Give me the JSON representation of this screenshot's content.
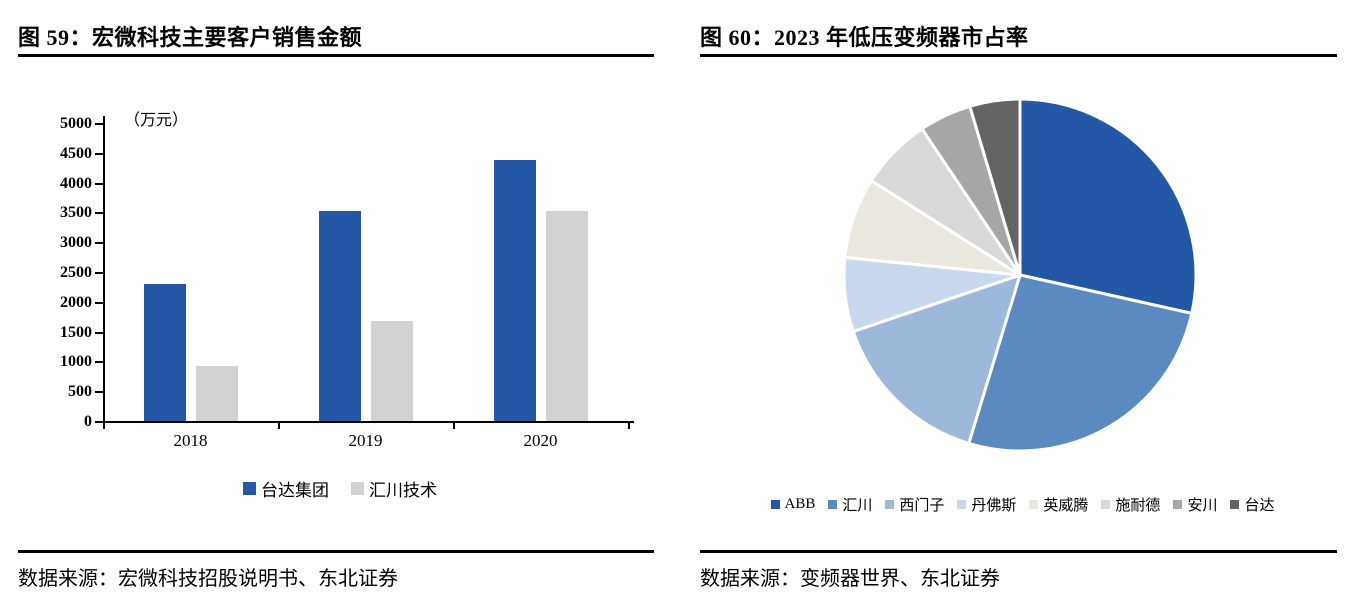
{
  "figure59": {
    "title": "图 59：宏微科技主要客户销售金额",
    "source": "数据来源：宏微科技招股说明书、东北证券"
  },
  "figure60": {
    "title": "图 60：2023 年低压变频器市占率",
    "source": "数据来源：变频器世界、东北证券"
  },
  "chart_data": [
    {
      "type": "bar",
      "title": "宏微科技主要客户销售金额",
      "categories": [
        "2018",
        "2019",
        "2020"
      ],
      "series": [
        {
          "name": "台达集团",
          "color": "#2458A6",
          "values": [
            2300,
            3530,
            4380
          ]
        },
        {
          "name": "汇川技术",
          "color": "#D2D2D2",
          "values": [
            930,
            1670,
            3520
          ]
        }
      ],
      "ylabel": "（万元）",
      "ylim": [
        0,
        5000
      ],
      "ystep": 500,
      "grid": false,
      "legend_position": "bottom"
    },
    {
      "type": "pie",
      "title": "2023 年低压变频器市占率",
      "labels": [
        "ABB",
        "汇川",
        "西门子",
        "丹佛斯",
        "英威腾",
        "施耐德",
        "安川",
        "台达"
      ],
      "values": [
        28.5,
        26.2,
        15.1,
        6.8,
        7.4,
        6.6,
        4.8,
        4.6
      ],
      "unit": "percent",
      "colors": [
        "#2458A6",
        "#5B8AC0",
        "#9CB9DC",
        "#C9D8EC",
        "#E9E7DE",
        "#D9D9D9",
        "#A6A6A6",
        "#646464"
      ],
      "start_angle_deg": 0,
      "direction": "clockwise",
      "legend_position": "bottom",
      "gap_color": "#FFFFFF"
    }
  ]
}
